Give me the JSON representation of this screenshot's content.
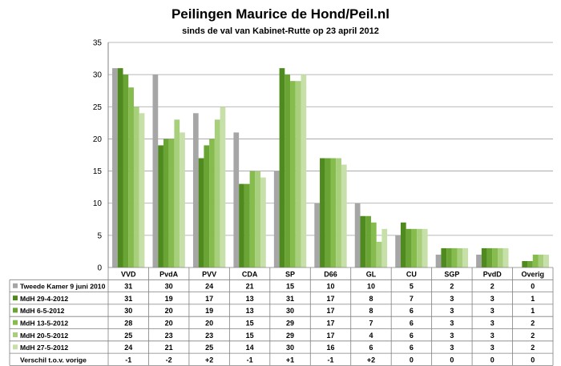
{
  "chart_data": {
    "type": "bar",
    "title": "Peilingen Maurice de Hond/Peil.nl",
    "subtitle": "sinds de val van Kabinet-Rutte op 23 april 2012",
    "categories": [
      "VVD",
      "PvdA",
      "PVV",
      "CDA",
      "SP",
      "D66",
      "GL",
      "CU",
      "SGP",
      "PvdD",
      "Overig"
    ],
    "ylim": [
      0,
      35
    ],
    "yticks": [
      0,
      5,
      10,
      15,
      20,
      25,
      30,
      35
    ],
    "grid": true,
    "legend": "table-below",
    "series": [
      {
        "name": "Tweede Kamer 9 juni 2010",
        "color": "#a6a6a6",
        "values": [
          31,
          30,
          24,
          21,
          15,
          10,
          10,
          5,
          2,
          2,
          0
        ]
      },
      {
        "name": "MdH 29-4-2012",
        "color": "#4f8a1f",
        "values": [
          31,
          19,
          17,
          13,
          31,
          17,
          8,
          7,
          3,
          3,
          1
        ]
      },
      {
        "name": "MdH 6-5-2012",
        "color": "#6aa434",
        "values": [
          30,
          20,
          19,
          13,
          30,
          17,
          8,
          6,
          3,
          3,
          1
        ]
      },
      {
        "name": "MdH 13-5-2012",
        "color": "#86bb4e",
        "values": [
          28,
          20,
          20,
          15,
          29,
          17,
          7,
          6,
          3,
          3,
          2
        ]
      },
      {
        "name": "MdH 20-5-2012",
        "color": "#a8cf7c",
        "values": [
          25,
          23,
          23,
          15,
          29,
          17,
          4,
          6,
          3,
          3,
          2
        ]
      },
      {
        "name": "MdH 27-5-2012",
        "color": "#c7e0aa",
        "values": [
          24,
          21,
          25,
          14,
          30,
          16,
          6,
          6,
          3,
          3,
          2
        ]
      }
    ],
    "diff_row": {
      "label": "Verschil t.o.v. vorige",
      "values": [
        "-1",
        "-2",
        "+2",
        "-1",
        "+1",
        "-1",
        "+2",
        "0",
        "0",
        "0",
        "0"
      ]
    }
  }
}
